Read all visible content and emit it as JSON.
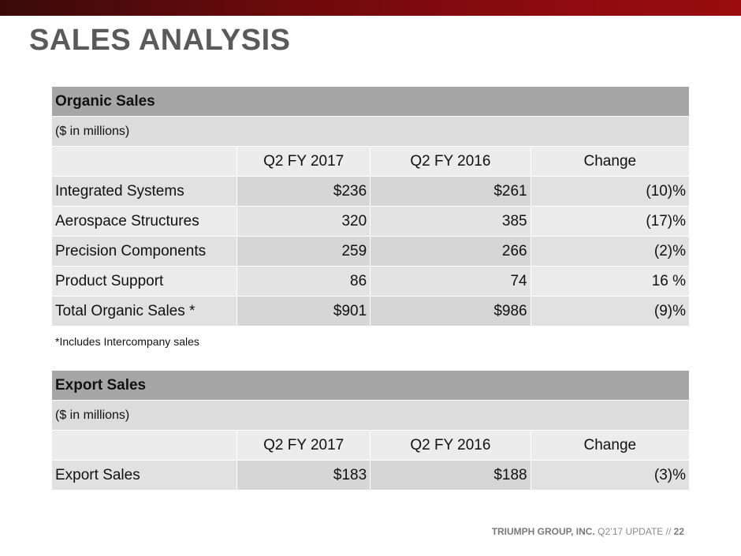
{
  "title": "SALES ANALYSIS",
  "organic": {
    "heading": "Organic Sales",
    "unit": "($ in millions)",
    "columns": [
      "Q2 FY 2017",
      "Q2 FY 2016",
      "Change"
    ],
    "rows": [
      {
        "label": "Integrated Systems",
        "q2_2017": "$236",
        "q2_2016": "$261",
        "change": "(10)%"
      },
      {
        "label": "Aerospace Structures",
        "q2_2017": "320",
        "q2_2016": "385",
        "change": "(17)%"
      },
      {
        "label": "Precision Components",
        "q2_2017": "259",
        "q2_2016": "266",
        "change": "(2)%"
      },
      {
        "label": "Product Support",
        "q2_2017": "86",
        "q2_2016": "74",
        "change": "16 %"
      }
    ],
    "total": {
      "label": "Total Organic Sales *",
      "q2_2017": "$901",
      "q2_2016": "$986",
      "change": "(9)%"
    },
    "note": "*Includes Intercompany sales"
  },
  "export": {
    "heading": "Export Sales",
    "unit": "($ in millions)",
    "columns": [
      "Q2 FY 2017",
      "Q2 FY 2016",
      "Change"
    ],
    "row": {
      "label": "Export Sales",
      "q2_2017": "$183",
      "q2_2016": "$188",
      "change": "(3)%"
    }
  },
  "footer": {
    "company": "TRIUMPH GROUP, INC.",
    "update": "Q2’17 UPDATE //",
    "page": "22"
  },
  "colors": {
    "topbar": "#8e0b0f",
    "title": "#5a5a5a",
    "header_fill": "#a6a6a6"
  }
}
